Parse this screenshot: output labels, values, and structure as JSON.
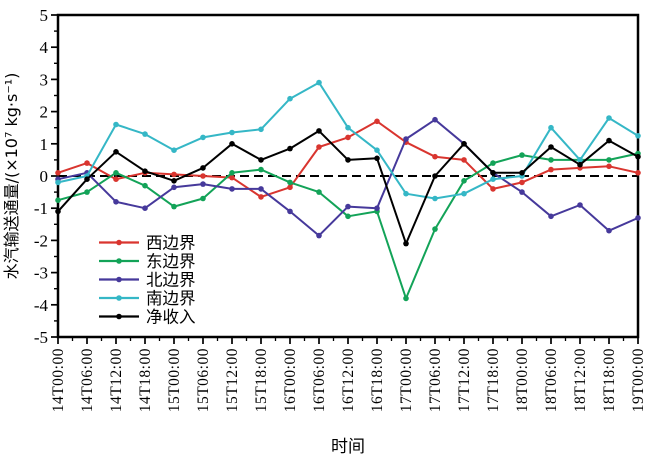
{
  "chart_data": {
    "type": "line",
    "title": "",
    "xlabel": "时间",
    "ylabel": "水汽输送通量/(×10⁷ kg·s⁻¹)",
    "ylim": [
      -5,
      5
    ],
    "ytick_step": 1,
    "ytick_minor_step": 0.5,
    "grid": false,
    "zero_line_style": "dashed-black",
    "legend_position": "inside-lower-left",
    "categories": [
      "14T00:00",
      "14T06:00",
      "14T12:00",
      "14T18:00",
      "15T00:00",
      "15T06:00",
      "15T12:00",
      "15T18:00",
      "16T00:00",
      "16T06:00",
      "16T12:00",
      "16T18:00",
      "17T00:00",
      "17T06:00",
      "17T12:00",
      "17T18:00",
      "18T00:00",
      "18T06:00",
      "18T12:00",
      "18T18:00",
      "19T00:00"
    ],
    "series": [
      {
        "name": "西边界",
        "name_en": "west-boundary",
        "color": "#d9352f",
        "marker": "circle",
        "values": [
          0.1,
          0.4,
          -0.1,
          0.1,
          0.05,
          0.0,
          -0.05,
          -0.65,
          -0.35,
          0.9,
          1.2,
          1.7,
          1.05,
          0.6,
          0.5,
          -0.4,
          -0.2,
          0.2,
          0.25,
          0.3,
          0.1
        ]
      },
      {
        "name": "东边界",
        "name_en": "east-boundary",
        "color": "#13a358",
        "marker": "circle",
        "values": [
          -0.75,
          -0.5,
          0.1,
          -0.3,
          -0.95,
          -0.7,
          0.1,
          0.2,
          -0.2,
          -0.5,
          -1.25,
          -1.1,
          -3.8,
          -1.65,
          -0.15,
          0.4,
          0.65,
          0.5,
          0.5,
          0.5,
          0.7
        ]
      },
      {
        "name": "北边界",
        "name_en": "north-boundary",
        "color": "#46399b",
        "marker": "circle",
        "values": [
          -0.1,
          0.1,
          -0.8,
          -1.0,
          -0.35,
          -0.25,
          -0.4,
          -0.4,
          -1.1,
          -1.85,
          -0.95,
          -1.0,
          1.15,
          1.75,
          1.0,
          0.1,
          -0.5,
          -1.25,
          -0.9,
          -1.7,
          -1.3
        ]
      },
      {
        "name": "南边界",
        "name_en": "south-boundary",
        "color": "#35b7c6",
        "marker": "circle",
        "values": [
          -0.2,
          0.0,
          1.6,
          1.3,
          0.8,
          1.2,
          1.35,
          1.45,
          2.4,
          2.9,
          1.5,
          0.8,
          -0.55,
          -0.7,
          -0.55,
          -0.1,
          0.0,
          1.5,
          0.5,
          1.8,
          1.25
        ]
      },
      {
        "name": "净收入",
        "name_en": "net-income",
        "color": "#000000",
        "marker": "circle",
        "values": [
          -1.1,
          -0.1,
          0.75,
          0.15,
          -0.15,
          0.25,
          1.0,
          0.5,
          0.85,
          1.4,
          0.5,
          0.55,
          -2.1,
          0.0,
          1.0,
          0.1,
          0.1,
          0.9,
          0.35,
          1.1,
          0.6
        ]
      }
    ]
  }
}
